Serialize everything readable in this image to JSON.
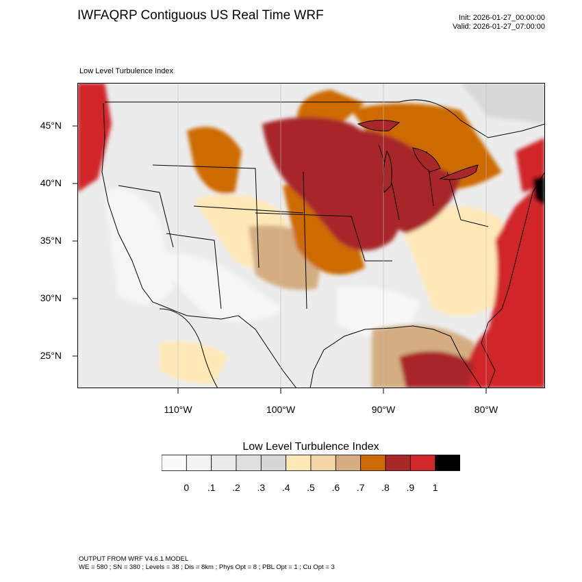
{
  "header": {
    "title": "IWFAQRP Contiguous US Real Time WRF",
    "init": "Init: 2026-01-27_00:00:00",
    "valid": "Valid: 2026-01-27_07:00:00"
  },
  "map": {
    "subtitle": "Low Level Turbulence Index",
    "lat_labels": [
      "45°N",
      "40°N",
      "35°N",
      "30°N",
      "25°N"
    ],
    "lon_labels": [
      "110°W",
      "100°W",
      "90°W",
      "80°W"
    ]
  },
  "colorbar": {
    "title": "Low Level Turbulence Index",
    "colors": [
      "#fafafa",
      "#f3f3f3",
      "#eaeaea",
      "#e0e0e0",
      "#d6d6d6",
      "#ffe8b8",
      "#f2d6a8",
      "#d4ae82",
      "#cd6a06",
      "#a8282a",
      "#d0282a",
      "#000000"
    ],
    "labels": [
      "0",
      ".1",
      ".2",
      ".3",
      ".4",
      ".5",
      ".6",
      ".7",
      ".8",
      ".9",
      "1"
    ]
  },
  "footer": {
    "line1": "OUTPUT FROM WRF V4.6.1 MODEL",
    "line2": "WE = 580 ; SN = 380 ; Levels = 38 ; Dis = 8km ; Phys Opt = 8 ; PBL Opt = 1 ; Cu Opt = 3"
  }
}
